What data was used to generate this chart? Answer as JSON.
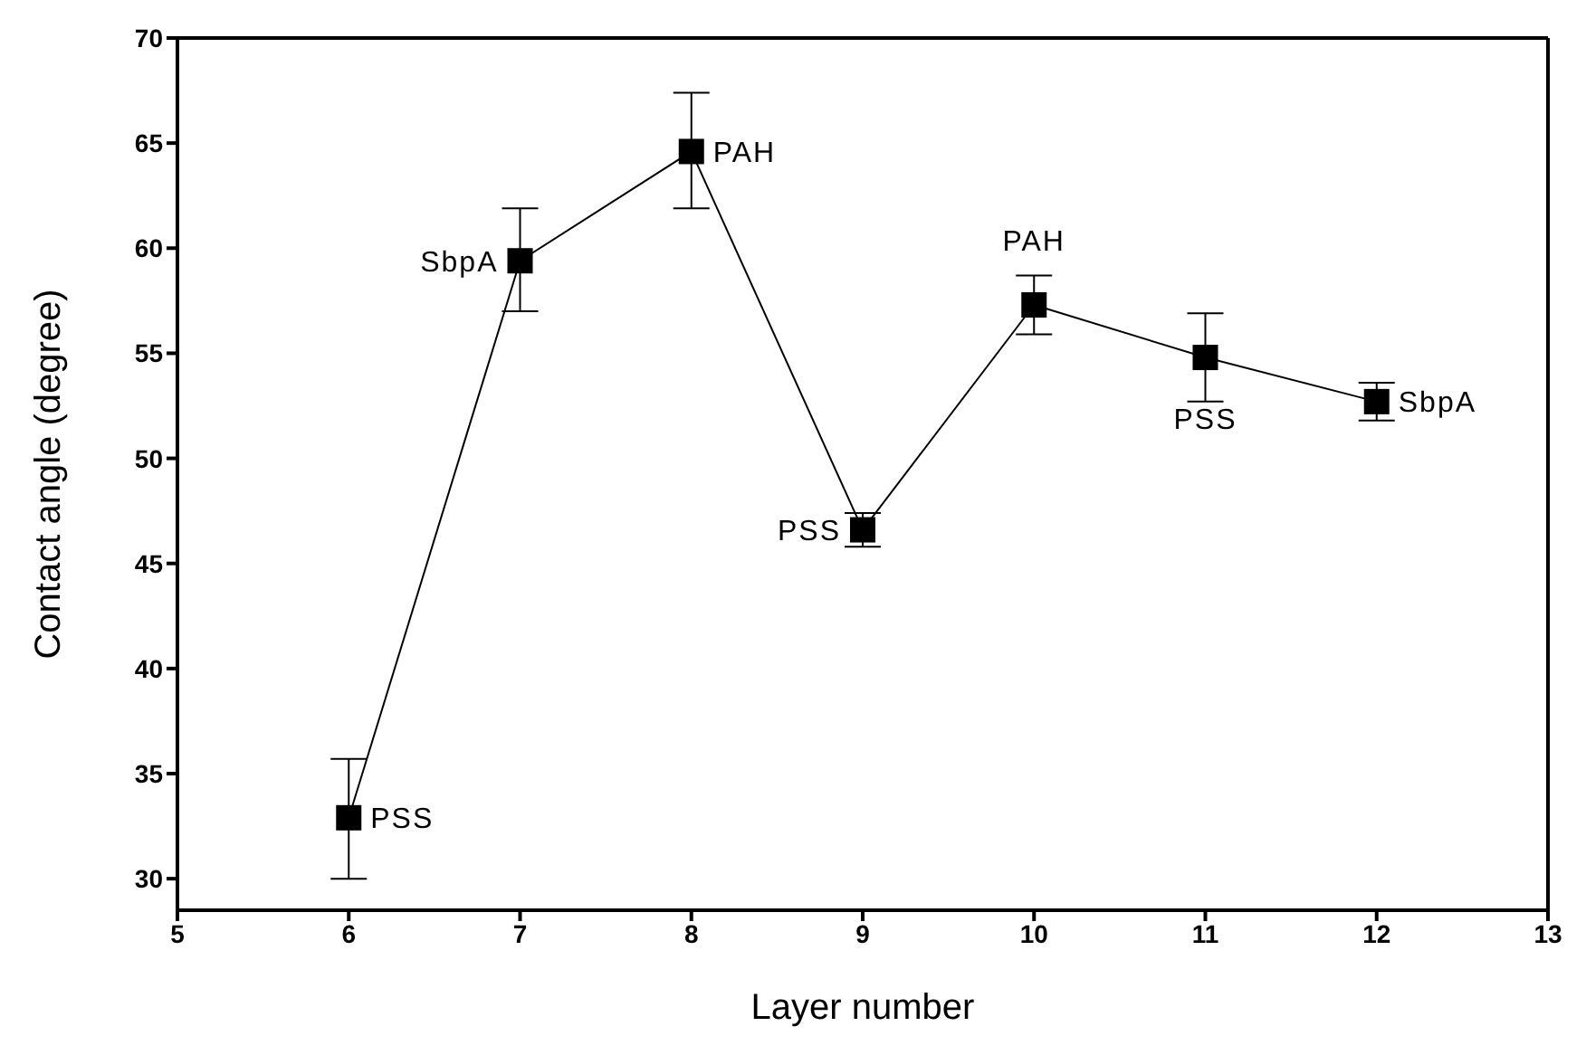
{
  "chart_data": {
    "type": "line",
    "xlabel": "Layer number",
    "ylabel": "Contact angle (degree)",
    "x": [
      6,
      7,
      8,
      9,
      10,
      11,
      12
    ],
    "series": [
      {
        "color": "#000000",
        "values": [
          32.9,
          59.4,
          64.6,
          46.6,
          57.3,
          54.8,
          52.7
        ],
        "errors": [
          [
            30.0,
            35.7
          ],
          [
            57.0,
            61.9
          ],
          [
            61.9,
            67.4
          ],
          [
            45.8,
            47.4
          ],
          [
            55.9,
            58.7
          ],
          [
            52.7,
            56.9
          ],
          [
            51.8,
            53.6
          ]
        ]
      }
    ],
    "annotations": [
      {
        "text": "PSS",
        "x": 6,
        "y": 32.9
      },
      {
        "text": "SbpA",
        "x": 7,
        "y": 59.4
      },
      {
        "text": "PAH",
        "x": 8,
        "y": 64.6
      },
      {
        "text": "PSS",
        "x": 9,
        "y": 46.6
      },
      {
        "text": "PAH",
        "x": 10,
        "y": 57.3
      },
      {
        "text": "PSS",
        "x": 11,
        "y": 54.8
      },
      {
        "text": "SbpA",
        "x": 12,
        "y": 52.7
      }
    ],
    "xlim": [
      5,
      13
    ],
    "xticks": [
      5,
      6,
      7,
      8,
      9,
      10,
      11,
      12,
      13
    ],
    "ylim": [
      28.5,
      70
    ],
    "yticks": [
      30,
      35,
      40,
      45,
      50,
      55,
      60,
      65,
      70
    ],
    "marker": "square",
    "line_style": "solid"
  }
}
